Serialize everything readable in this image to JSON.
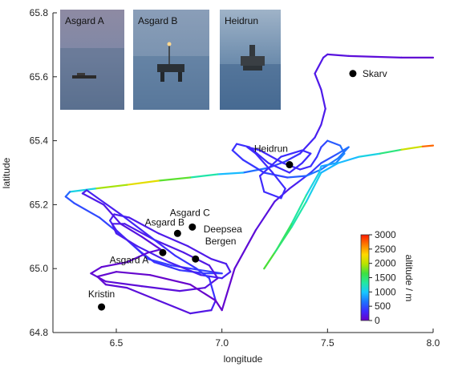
{
  "chart_data": {
    "type": "scatter",
    "xlabel": "longitude",
    "ylabel": "latitude",
    "xlim": [
      6.2,
      8.0
    ],
    "ylim": [
      64.8,
      65.8
    ],
    "x_ticks": [
      "6.5",
      "7.0",
      "7.5",
      "8.0"
    ],
    "y_ticks": [
      "64.8",
      "65.0",
      "65.2",
      "65.4",
      "65.6",
      "65.8"
    ],
    "x_tick_values": [
      6.5,
      7.0,
      7.5,
      8.0
    ],
    "y_tick_values": [
      64.8,
      65.0,
      65.2,
      65.4,
      65.6,
      65.8
    ],
    "colorbar": {
      "label": "altitude / m",
      "range": [
        0,
        3000
      ],
      "ticks": [
        "0",
        "500",
        "1000",
        "1500",
        "2000",
        "2500",
        "3000"
      ],
      "tick_values": [
        0,
        500,
        1000,
        1500,
        2000,
        2500,
        3000
      ],
      "colormap": [
        "#6a00c8",
        "#3d2cff",
        "#1e74ff",
        "#18c8ff",
        "#22e8a0",
        "#3ee040",
        "#b8e400",
        "#ffd800",
        "#ff8000",
        "#ff1a00"
      ]
    },
    "sites": [
      {
        "name": "Skarv",
        "x": 7.62,
        "y": 65.61
      },
      {
        "name": "Heidrun",
        "x": 7.32,
        "y": 65.325
      },
      {
        "name": "Asgard C",
        "x": 6.86,
        "y": 65.13
      },
      {
        "name": "Asgard B",
        "x": 6.79,
        "y": 65.11
      },
      {
        "name": "Deepsea Bergen",
        "x": 6.875,
        "y": 65.03
      },
      {
        "name": "Asgard A",
        "x": 6.72,
        "y": 65.05
      },
      {
        "name": "Kristin",
        "x": 6.43,
        "y": 64.88
      }
    ],
    "flight_track": [
      [
        8.0,
        65.66,
        50
      ],
      [
        7.85,
        65.66,
        80
      ],
      [
        7.6,
        65.665,
        120
      ],
      [
        7.5,
        65.67,
        150
      ],
      [
        7.48,
        65.66,
        170
      ],
      [
        7.44,
        65.61,
        190
      ],
      [
        7.47,
        65.56,
        200
      ],
      [
        7.49,
        65.5,
        210
      ],
      [
        7.47,
        65.45,
        200
      ],
      [
        7.44,
        65.41,
        260
      ],
      [
        7.37,
        65.36,
        300
      ],
      [
        7.3,
        65.335,
        420
      ],
      [
        7.22,
        65.315,
        500
      ],
      [
        7.1,
        65.3,
        800
      ],
      [
        6.98,
        65.295,
        1100
      ],
      [
        6.85,
        65.285,
        1500
      ],
      [
        6.7,
        65.275,
        2000
      ],
      [
        6.55,
        65.262,
        2400
      ],
      [
        6.4,
        65.25,
        1500
      ],
      [
        6.28,
        65.24,
        700
      ],
      [
        6.26,
        65.225,
        550
      ],
      [
        6.3,
        65.205,
        500
      ],
      [
        6.42,
        65.16,
        450
      ],
      [
        6.55,
        65.09,
        440
      ],
      [
        6.65,
        65.03,
        430
      ],
      [
        6.76,
        65.01,
        420
      ],
      [
        6.9,
        64.995,
        420
      ],
      [
        7.0,
        64.985,
        450
      ],
      [
        6.92,
        64.985,
        400
      ],
      [
        6.8,
        64.995,
        380
      ],
      [
        6.68,
        65.02,
        360
      ],
      [
        6.62,
        65.05,
        330
      ],
      [
        6.55,
        65.09,
        300
      ],
      [
        6.5,
        65.12,
        280
      ],
      [
        6.47,
        65.15,
        250
      ],
      [
        6.49,
        65.17,
        230
      ],
      [
        6.56,
        65.16,
        220
      ],
      [
        6.7,
        65.11,
        210
      ],
      [
        6.84,
        65.07,
        200
      ],
      [
        6.95,
        65.03,
        200
      ],
      [
        7.02,
        65.015,
        220
      ],
      [
        7.04,
        64.99,
        250
      ],
      [
        7.0,
        64.97,
        280
      ],
      [
        6.9,
        64.98,
        260
      ],
      [
        6.75,
        65.02,
        240
      ],
      [
        6.6,
        65.07,
        230
      ],
      [
        6.5,
        65.11,
        220
      ],
      [
        6.48,
        65.14,
        210
      ],
      [
        6.54,
        65.14,
        200
      ],
      [
        6.68,
        65.09,
        200
      ],
      [
        6.82,
        65.05,
        180
      ],
      [
        6.94,
        65.01,
        170
      ],
      [
        6.98,
        64.97,
        160
      ],
      [
        6.92,
        64.94,
        140
      ],
      [
        6.8,
        64.93,
        120
      ],
      [
        6.62,
        64.945,
        100
      ],
      [
        6.45,
        64.96,
        80
      ],
      [
        6.38,
        64.985,
        70
      ],
      [
        6.43,
        65.005,
        60
      ],
      [
        6.55,
        65.02,
        60
      ],
      [
        6.65,
        65.05,
        80
      ],
      [
        6.71,
        65.06,
        100
      ],
      [
        6.62,
        65.1,
        130
      ],
      [
        6.52,
        65.14,
        160
      ],
      [
        6.44,
        65.2,
        190
      ],
      [
        6.34,
        65.235,
        210
      ],
      [
        6.36,
        65.245,
        230
      ],
      [
        6.52,
        65.17,
        260
      ],
      [
        6.66,
        65.1,
        300
      ],
      [
        6.78,
        65.04,
        350
      ],
      [
        6.88,
        65.0,
        380
      ],
      [
        6.94,
        64.97,
        400
      ],
      [
        6.97,
        64.9,
        300
      ],
      [
        6.95,
        64.87,
        200
      ],
      [
        6.85,
        64.86,
        150
      ],
      [
        6.7,
        64.9,
        120
      ],
      [
        6.55,
        64.94,
        100
      ],
      [
        6.45,
        64.95,
        80
      ],
      [
        6.41,
        64.975,
        60
      ],
      [
        6.5,
        64.99,
        40
      ],
      [
        6.66,
        64.98,
        30
      ],
      [
        6.85,
        64.95,
        20
      ],
      [
        6.97,
        64.9,
        20
      ],
      [
        7.0,
        64.87,
        30
      ],
      [
        7.06,
        65.0,
        60
      ],
      [
        7.16,
        65.12,
        100
      ],
      [
        7.25,
        65.21,
        160
      ],
      [
        7.32,
        65.25,
        200
      ],
      [
        7.36,
        65.27,
        260
      ],
      [
        7.42,
        65.3,
        350
      ],
      [
        7.47,
        65.33,
        450
      ],
      [
        7.55,
        65.36,
        550
      ],
      [
        7.6,
        65.38,
        650
      ],
      [
        7.55,
        65.345,
        700
      ],
      [
        7.47,
        65.31,
        700
      ],
      [
        7.4,
        65.29,
        650
      ],
      [
        7.31,
        65.285,
        500
      ],
      [
        7.2,
        65.3,
        400
      ],
      [
        7.1,
        65.34,
        380
      ],
      [
        7.05,
        65.37,
        360
      ],
      [
        7.07,
        65.39,
        350
      ],
      [
        7.13,
        65.38,
        340
      ],
      [
        7.22,
        65.33,
        330
      ],
      [
        7.32,
        65.3,
        320
      ],
      [
        7.38,
        65.33,
        320
      ],
      [
        7.42,
        65.36,
        320
      ],
      [
        7.38,
        65.37,
        330
      ],
      [
        7.28,
        65.35,
        330
      ],
      [
        7.18,
        65.29,
        320
      ],
      [
        7.2,
        65.24,
        320
      ],
      [
        7.28,
        65.22,
        330
      ],
      [
        7.3,
        65.25,
        330
      ],
      [
        7.24,
        65.3,
        320
      ],
      [
        7.16,
        65.36,
        320
      ],
      [
        7.12,
        65.38,
        310
      ],
      [
        7.18,
        65.37,
        300
      ],
      [
        7.29,
        65.33,
        300
      ],
      [
        7.37,
        65.31,
        300
      ],
      [
        7.42,
        65.32,
        320
      ],
      [
        7.45,
        65.35,
        380
      ],
      [
        7.47,
        65.38,
        420
      ],
      [
        7.5,
        65.4,
        500
      ],
      [
        7.56,
        65.385,
        600
      ],
      [
        7.58,
        65.36,
        700
      ],
      [
        7.54,
        65.33,
        800
      ],
      [
        7.47,
        65.32,
        900
      ],
      [
        7.46,
        65.3,
        1000
      ],
      [
        7.4,
        65.23,
        1200
      ],
      [
        7.33,
        65.14,
        1450
      ],
      [
        7.26,
        65.06,
        1650
      ],
      [
        7.2,
        65.0,
        1800
      ],
      [
        7.25,
        65.05,
        1600
      ],
      [
        7.33,
        65.13,
        1400
      ],
      [
        7.4,
        65.21,
        1200
      ],
      [
        7.47,
        65.3,
        950
      ],
      [
        7.55,
        65.33,
        900
      ],
      [
        7.65,
        65.35,
        1000
      ],
      [
        7.75,
        65.36,
        1200
      ],
      [
        7.85,
        65.372,
        1700
      ],
      [
        7.95,
        65.382,
        2500
      ],
      [
        8.0,
        65.385,
        3000
      ]
    ]
  },
  "photos": [
    {
      "label": "Asgard A"
    },
    {
      "label": "Asgard B"
    },
    {
      "label": "Heidrun"
    }
  ]
}
